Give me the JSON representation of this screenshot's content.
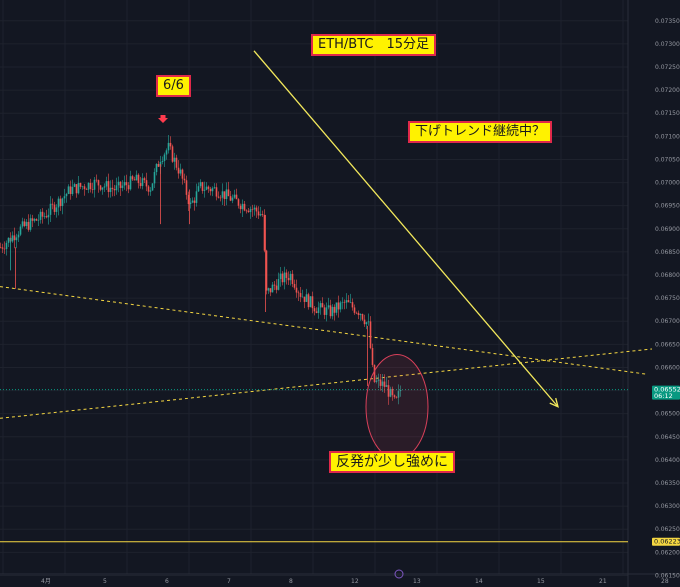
{
  "chart_data": {
    "type": "candlestick",
    "title": "ETH/BTC　15分足",
    "annotations": {
      "peak_label": "6/6",
      "trend_question": "下げトレンド継続中？",
      "rebound_note": "反発が少し強めに"
    },
    "y_axis": {
      "position": "right",
      "ticks": [
        "0.07350",
        "0.07300",
        "0.07250",
        "0.07200",
        "0.07150",
        "0.07100",
        "0.07050",
        "0.07000",
        "0.06950",
        "0.06900",
        "0.06850",
        "0.06800",
        "0.06750",
        "0.06700",
        "0.06650",
        "0.06600",
        "0.06550",
        "0.06500",
        "0.06450",
        "0.06400",
        "0.06350",
        "0.06300",
        "0.06250",
        "0.06200",
        "0.06150"
      ],
      "range": [
        0.06125,
        0.07395
      ]
    },
    "x_axis": {
      "ticks": [
        {
          "label": "4月",
          "bar": 3
        },
        {
          "label": "5",
          "bar": 65
        },
        {
          "label": "6",
          "bar": 127
        },
        {
          "label": "7",
          "bar": 189
        },
        {
          "label": "8",
          "bar": 251
        },
        {
          "label": "12",
          "bar": 313
        },
        {
          "label": "13",
          "bar": 375
        },
        {
          "label": "14",
          "bar": 437
        },
        {
          "label": "15",
          "bar": 499
        },
        {
          "label": "21",
          "bar": 561
        },
        {
          "label": "28",
          "bar": 623
        }
      ],
      "range": [
        0,
        680
      ]
    },
    "current_price": {
      "value": "0.06552",
      "countdown": "06:12"
    },
    "horizontal_level": {
      "value": "0.06223"
    },
    "colors": {
      "up": "#26a69a",
      "down": "#ef5350",
      "trendline": "#f5d742",
      "arrow": "#f2e85c",
      "annotation_bg": "#fff200",
      "annotation_border": "#e0294a",
      "circle": "#d8405a",
      "price_line": "#089981",
      "level_line": "#f5d742"
    },
    "keypoints": [
      [
        0,
        0.0686
      ],
      [
        20,
        0.069
      ],
      [
        45,
        0.0693
      ],
      [
        70,
        0.06985
      ],
      [
        95,
        0.07
      ],
      [
        115,
        0.06985
      ],
      [
        135,
        0.07005
      ],
      [
        150,
        0.0699
      ],
      [
        160,
        0.07055
      ],
      [
        168,
        0.07075
      ],
      [
        180,
        0.0702
      ],
      [
        190,
        0.0695
      ],
      [
        200,
        0.0699
      ],
      [
        215,
        0.06985
      ],
      [
        235,
        0.0696
      ],
      [
        255,
        0.0694
      ],
      [
        262,
        0.0693
      ],
      [
        266,
        0.0676
      ],
      [
        280,
        0.0679
      ],
      [
        290,
        0.068
      ],
      [
        300,
        0.0676
      ],
      [
        315,
        0.0673
      ],
      [
        330,
        0.0672
      ],
      [
        345,
        0.0674
      ],
      [
        360,
        0.0672
      ],
      [
        368,
        0.0669
      ],
      [
        373,
        0.0657
      ],
      [
        385,
        0.0656
      ],
      [
        395,
        0.0652
      ],
      [
        400,
        0.06552
      ]
    ],
    "trendlines": [
      {
        "style": "dashed",
        "from": [
          0,
          0.06775
        ],
        "to": [
          648,
          0.06585
        ]
      },
      {
        "style": "dashed",
        "from": [
          0,
          0.0649
        ],
        "to": [
          652,
          0.0664
        ]
      }
    ],
    "arrow": {
      "from": [
        254,
        0.07285
      ],
      "to": [
        558,
        0.06515
      ]
    },
    "ellipse": {
      "center": [
        397,
        0.06515
      ],
      "rx": 31,
      "ry": 0.00113
    }
  }
}
